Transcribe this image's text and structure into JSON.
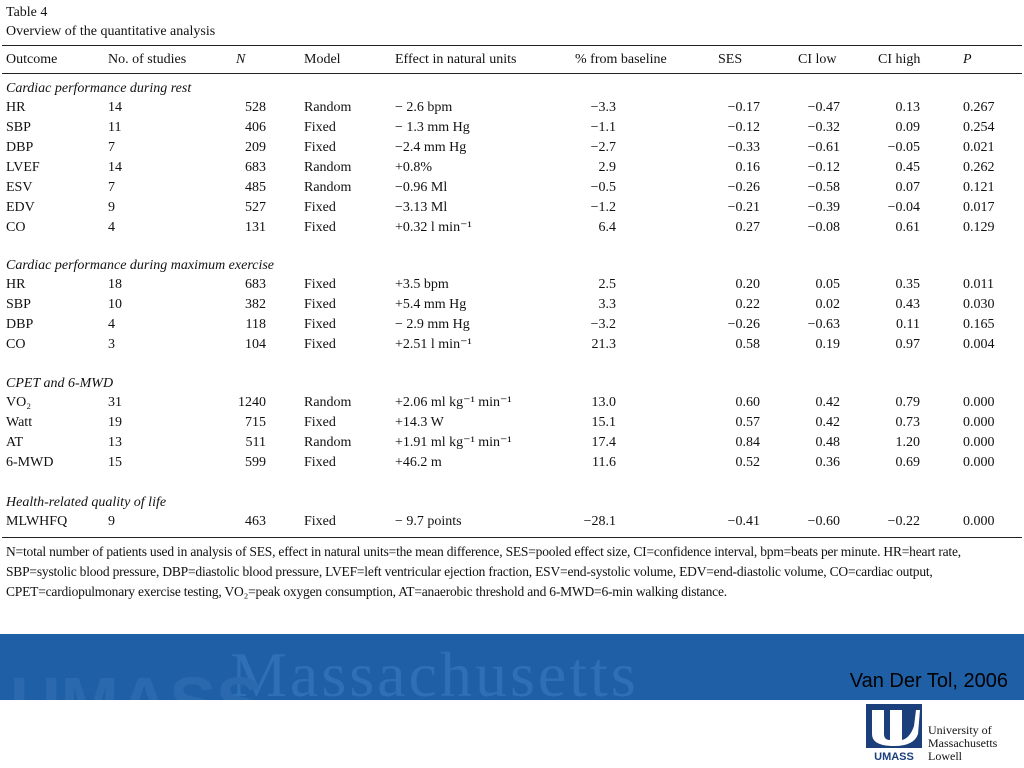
{
  "table": {
    "title": "Table 4",
    "subtitle": "Overview of the quantitative analysis",
    "headers": [
      "Outcome",
      "No. of studies",
      "N",
      "Model",
      "Effect in natural units",
      "% from baseline",
      "SES",
      "CI low",
      "CI high",
      "P"
    ],
    "sections": [
      {
        "title": "Cardiac performance during rest",
        "rows": [
          [
            "HR",
            "14",
            "528",
            "Random",
            "− 2.6 bpm",
            "−3.3",
            "−0.17",
            "−0.47",
            "0.13",
            "0.267"
          ],
          [
            "SBP",
            "11",
            "406",
            "Fixed",
            "− 1.3 mm Hg",
            "−1.1",
            "−0.12",
            "−0.32",
            "0.09",
            "0.254"
          ],
          [
            "DBP",
            "7",
            "209",
            "Fixed",
            "−2.4 mm Hg",
            "−2.7",
            "−0.33",
            "−0.61",
            "−0.05",
            "0.021"
          ],
          [
            "LVEF",
            "14",
            "683",
            "Random",
            "+0.8%",
            "2.9",
            "0.16",
            "−0.12",
            "0.45",
            "0.262"
          ],
          [
            "ESV",
            "7",
            "485",
            "Random",
            "−0.96 Ml",
            "−0.5",
            "−0.26",
            "−0.58",
            "0.07",
            "0.121"
          ],
          [
            "EDV",
            "9",
            "527",
            "Fixed",
            "−3.13 Ml",
            "−1.2",
            "−0.21",
            "−0.39",
            "−0.04",
            "0.017"
          ],
          [
            "CO",
            "4",
            "131",
            "Fixed",
            "+0.32 l min⁻¹",
            "6.4",
            "0.27",
            "−0.08",
            "0.61",
            "0.129"
          ]
        ]
      },
      {
        "title": "Cardiac performance during maximum exercise",
        "rows": [
          [
            "HR",
            "18",
            "683",
            "Fixed",
            "+3.5 bpm",
            "2.5",
            "0.20",
            "0.05",
            "0.35",
            "0.011"
          ],
          [
            "SBP",
            "10",
            "382",
            "Fixed",
            "+5.4 mm Hg",
            "3.3",
            "0.22",
            "0.02",
            "0.43",
            "0.030"
          ],
          [
            "DBP",
            "4",
            "118",
            "Fixed",
            "− 2.9 mm Hg",
            "−3.2",
            "−0.26",
            "−0.63",
            "0.11",
            "0.165"
          ],
          [
            "CO",
            "3",
            "104",
            "Fixed",
            "+2.51 l min⁻¹",
            "21.3",
            "0.58",
            "0.19",
            "0.97",
            "0.004"
          ]
        ]
      },
      {
        "title": "CPET and 6-MWD",
        "rows": [
          [
            "VO₂",
            "31",
            "1240",
            "Random",
            "+2.06 ml kg⁻¹ min⁻¹",
            "13.0",
            "0.60",
            "0.42",
            "0.79",
            "0.000"
          ],
          [
            "Watt",
            "19",
            "715",
            "Fixed",
            "+14.3 W",
            "15.1",
            "0.57",
            "0.42",
            "0.73",
            "0.000"
          ],
          [
            "AT",
            "13",
            "511",
            "Random",
            "+1.91 ml kg⁻¹ min⁻¹",
            "17.4",
            "0.84",
            "0.48",
            "1.20",
            "0.000"
          ],
          [
            "6-MWD",
            "15",
            "599",
            "Fixed",
            "+46.2 m",
            "11.6",
            "0.52",
            "0.36",
            "0.69",
            "0.000"
          ]
        ]
      },
      {
        "title": "Health-related quality of life",
        "rows": [
          [
            "MLWHFQ",
            "9",
            "463",
            "Fixed",
            "− 9.7 points",
            "−28.1",
            "−0.41",
            "−0.60",
            "−0.22",
            "0.000"
          ]
        ]
      }
    ],
    "footnote": "N=total number of patients used in analysis of SES, effect in natural units=the mean difference, SES=pooled effect size, CI=confidence interval, bpm=beats per minute. HR=heart rate, SBP=systolic blood pressure, DBP=diastolic blood pressure, LVEF=left ventricular ejection fraction, ESV=end-systolic volume, EDV=end-diastolic volume, CO=cardiac output, CPET=cardiopulmonary exercise testing, VO₂=peak oxygen consumption, AT=anaerobic threshold and 6-MWD=6-min walking distance."
  },
  "banner": {
    "citation": "Van Der Tol, 2006",
    "watermark_text": "Massachusetts",
    "watermark_text_2": "UMASS",
    "color": "#1f5fa6"
  },
  "logo": {
    "mark_text": "UMASS",
    "lines": [
      "University of",
      "Massachusetts",
      "Lowell"
    ]
  }
}
